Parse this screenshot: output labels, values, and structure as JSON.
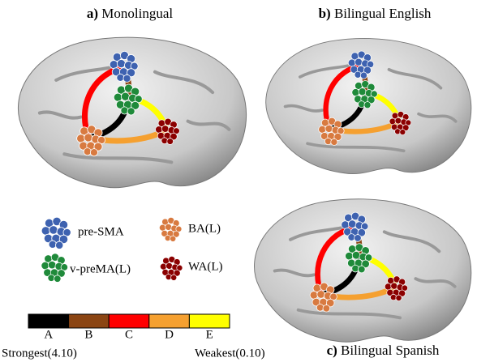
{
  "panels": [
    {
      "label": "a)",
      "title": "Monolingual"
    },
    {
      "label": "b)",
      "title": "Bilingual English"
    },
    {
      "label": "c)",
      "title": "Bilingual Spanish"
    }
  ],
  "legend": {
    "nodes": [
      "pre-SMA",
      "BA(L)",
      "v-preMA(L)",
      "WA(L)"
    ]
  },
  "scale": {
    "items": [
      {
        "label": "A",
        "color": "#000000"
      },
      {
        "label": "B",
        "color": "#8b4513"
      },
      {
        "label": "C",
        "color": "#ff0000"
      },
      {
        "label": "D",
        "color": "#f5a030"
      },
      {
        "label": "E",
        "color": "#ffff00"
      }
    ],
    "strongest": "Strongest(4.10)",
    "weakest": "Weakest(0.10)"
  }
}
